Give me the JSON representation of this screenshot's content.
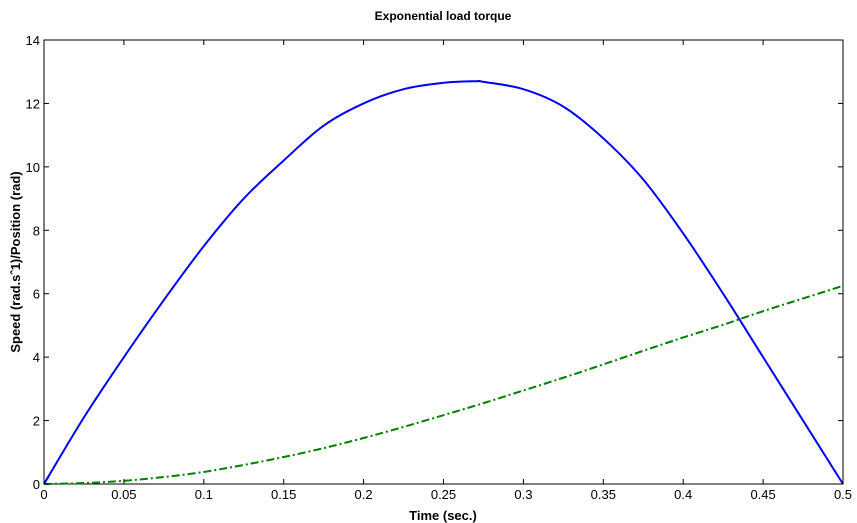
{
  "chart_data": {
    "type": "line",
    "title": "Exponential load torque",
    "xlabel": "Time (sec.)",
    "ylabel": "Speed (rad.sˆ1)/Position (rad)",
    "xlim": [
      0,
      0.5
    ],
    "ylim": [
      0,
      14
    ],
    "xticks": [
      "0",
      "0.05",
      "0.1",
      "0.15",
      "0.2",
      "0.25",
      "0.3",
      "0.35",
      "0.4",
      "0.45",
      "0.5"
    ],
    "yticks": [
      "0",
      "2",
      "4",
      "6",
      "8",
      "10",
      "12",
      "14"
    ],
    "grid": false,
    "legend": "none",
    "series": [
      {
        "style": "solid",
        "color": "#0000ff",
        "x": [
          0,
          0.025,
          0.05,
          0.075,
          0.1,
          0.125,
          0.15,
          0.175,
          0.2,
          0.225,
          0.25,
          0.27,
          0.275,
          0.3,
          0.325,
          0.35,
          0.375,
          0.4,
          0.425,
          0.45,
          0.475,
          0.5
        ],
        "y": [
          0,
          2.1,
          4.0,
          5.8,
          7.5,
          9.0,
          10.2,
          11.3,
          12.0,
          12.45,
          12.65,
          12.7,
          12.68,
          12.45,
          11.9,
          10.9,
          9.6,
          7.9,
          6.0,
          4.0,
          2.0,
          0
        ]
      },
      {
        "style": "dashdot",
        "color": "#008000",
        "x": [
          0,
          0.025,
          0.05,
          0.075,
          0.1,
          0.125,
          0.15,
          0.175,
          0.2,
          0.225,
          0.25,
          0.275,
          0.3,
          0.325,
          0.35,
          0.375,
          0.4,
          0.425,
          0.45,
          0.475,
          0.5
        ],
        "y": [
          0,
          0.03,
          0.1,
          0.22,
          0.38,
          0.6,
          0.85,
          1.13,
          1.45,
          1.8,
          2.17,
          2.55,
          2.95,
          3.35,
          3.77,
          4.2,
          4.62,
          5.02,
          5.45,
          5.85,
          6.25
        ]
      }
    ]
  }
}
